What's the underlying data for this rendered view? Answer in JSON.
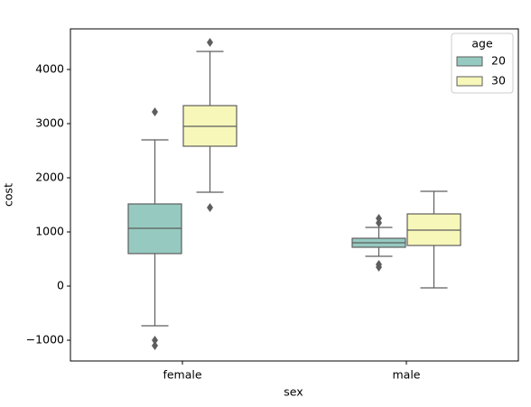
{
  "chart_data": {
    "type": "box",
    "x_label": "sex",
    "y_label": "cost",
    "categories": [
      "female",
      "male"
    ],
    "legend_title": "age",
    "legend": "upper right",
    "series": [
      {
        "name": "20",
        "color": "#96cac0",
        "boxes": [
          {
            "min": -733,
            "q1": 600,
            "median": 1067,
            "q3": 1517,
            "max": 2700,
            "outliers": [
              3217,
              -1000,
              -1100
            ]
          },
          {
            "min": 550,
            "q1": 717,
            "median": 800,
            "q3": 883,
            "max": 1083,
            "outliers": [
              1250,
              1167,
              400,
              350
            ]
          }
        ]
      },
      {
        "name": "30",
        "color": "#f7f7b9",
        "boxes": [
          {
            "min": 1733,
            "q1": 2583,
            "median": 2950,
            "q3": 3333,
            "max": 4333,
            "outliers": [
              4500,
              1450
            ]
          },
          {
            "min": -33,
            "q1": 750,
            "median": 1033,
            "q3": 1333,
            "max": 1750,
            "outliers": []
          }
        ]
      }
    ],
    "ylim": [
      -1383,
      4750
    ],
    "yticks": [
      {
        "value": -1000,
        "label": "−1000"
      },
      0,
      1000,
      2000,
      3000,
      4000
    ]
  }
}
